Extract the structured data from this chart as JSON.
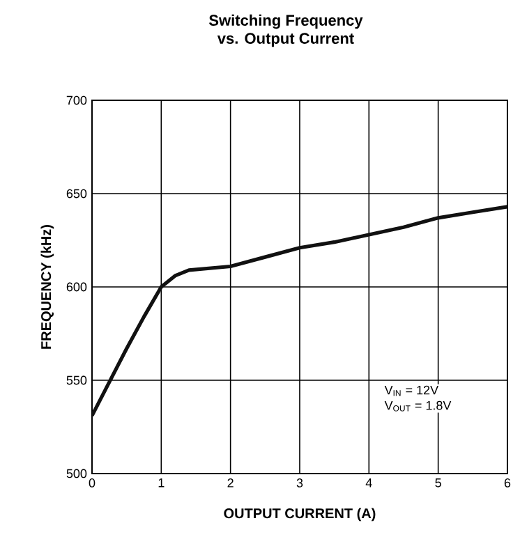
{
  "chart_data": {
    "type": "line",
    "title": "Switching Frequency",
    "subtitle": "vs. Output Current",
    "xlabel": "OUTPUT CURRENT (A)",
    "ylabel": "FREQUENCY (kHz)",
    "x": [
      0,
      0.25,
      0.5,
      0.75,
      1,
      1.2,
      1.4,
      1.7,
      2,
      2.5,
      3,
      3.5,
      4,
      4.5,
      5,
      5.5,
      6
    ],
    "series": [
      {
        "color": "#111111",
        "values": [
          531,
          549,
          567,
          584,
          600,
          606,
          609,
          610,
          611,
          616,
          621,
          624,
          628,
          632,
          637,
          640,
          643
        ]
      }
    ],
    "xlim": [
      0,
      6
    ],
    "ylim": [
      500,
      700
    ],
    "xticks": [
      0,
      1,
      2,
      3,
      4,
      5,
      6
    ],
    "yticks": [
      500,
      550,
      600,
      650,
      700
    ],
    "grid": true,
    "marker": "none",
    "line_style": "solid",
    "annotations": [
      "V$_{IN}$ = 12V",
      "V$_{OUT}$ = 1.8V"
    ]
  }
}
